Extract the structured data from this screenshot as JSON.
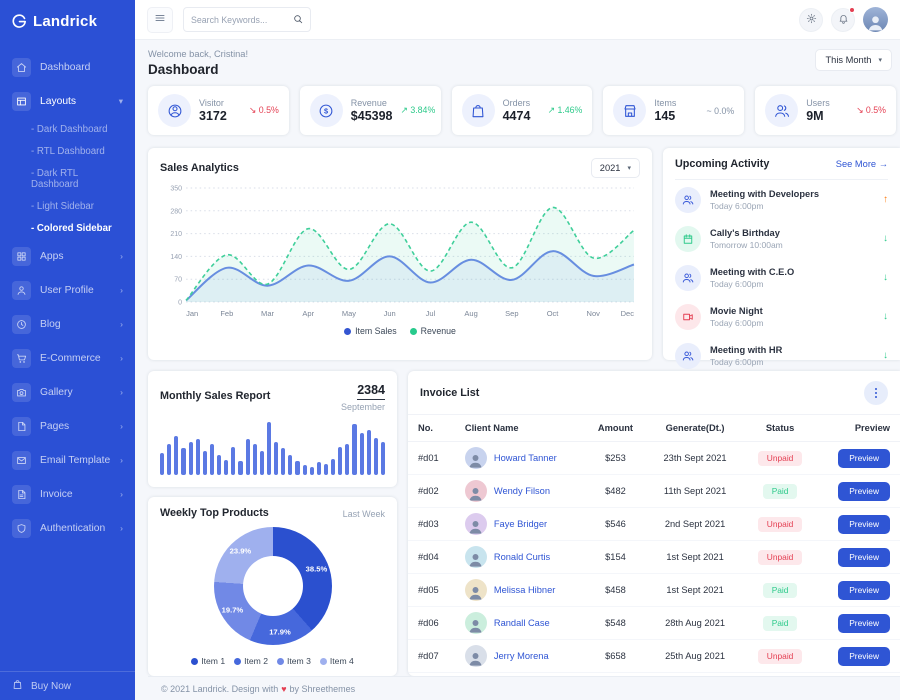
{
  "app": {
    "logo_text": "Landrick",
    "accent": "#2f55d4",
    "danger": "#e43f52",
    "success": "#2eca8b",
    "warning": "#fd7e14"
  },
  "sidebar": {
    "items": [
      {
        "label": "Dashboard",
        "icon": "home-icon",
        "arrow": ""
      },
      {
        "label": "Layouts",
        "icon": "layout-icon",
        "arrow": "down",
        "expanded": true,
        "children": [
          "Dark Dashboard",
          "RTL Dashboard",
          "Dark RTL Dashboard",
          "Light Sidebar",
          "Colored Sidebar"
        ],
        "active_child": "Colored Sidebar"
      },
      {
        "label": "Apps",
        "icon": "grid-icon",
        "arrow": "right"
      },
      {
        "label": "User Profile",
        "icon": "user-icon",
        "arrow": "right"
      },
      {
        "label": "Blog",
        "icon": "clock-icon",
        "arrow": "right"
      },
      {
        "label": "E-Commerce",
        "icon": "cart-icon",
        "arrow": "right"
      },
      {
        "label": "Gallery",
        "icon": "camera-icon",
        "arrow": "right"
      },
      {
        "label": "Pages",
        "icon": "file-icon",
        "arrow": "right"
      },
      {
        "label": "Email Template",
        "icon": "mail-icon",
        "arrow": "right"
      },
      {
        "label": "Invoice",
        "icon": "file-text-icon",
        "arrow": "right"
      },
      {
        "label": "Authentication",
        "icon": "shield-icon",
        "arrow": "right"
      }
    ],
    "buy_now_label": "Buy Now",
    "buy_now_icon": "bag-icon"
  },
  "topbar": {
    "search_placeholder": "Search Keywords...",
    "icons": [
      "menu-icon",
      "search-icon",
      "gear-icon",
      "bell-icon"
    ],
    "bell_has_badge": true
  },
  "page": {
    "welcome": "Welcome back, Cristina!",
    "title": "Dashboard",
    "period": "This Month"
  },
  "stats": [
    {
      "label": "Visitor",
      "value": "3172",
      "delta": "0.5%",
      "trend": "down",
      "icon": "person-circle-icon"
    },
    {
      "label": "Revenue",
      "value": "$45398",
      "delta": "3.84%",
      "trend": "up",
      "icon": "dollar-circle-icon"
    },
    {
      "label": "Orders",
      "value": "4474",
      "delta": "1.46%",
      "trend": "up",
      "icon": "shopping-bag-icon"
    },
    {
      "label": "Items",
      "value": "145",
      "delta": "0.0%",
      "trend": "flat",
      "icon": "storefront-icon"
    },
    {
      "label": "Users",
      "value": "9M",
      "delta": "0.5%",
      "trend": "down",
      "icon": "users-icon"
    }
  ],
  "chart_data": [
    {
      "type": "line",
      "title": "Sales Analytics",
      "year_selector": "2021",
      "x": [
        "Jan",
        "Feb",
        "Mar",
        "Apr",
        "May",
        "Jun",
        "Jul",
        "Aug",
        "Sep",
        "Oct",
        "Nov",
        "Dec"
      ],
      "series": [
        {
          "name": "Item Sales",
          "color": "#6d87e8",
          "style": "solid",
          "values": [
            5,
            105,
            50,
            112,
            65,
            140,
            60,
            130,
            68,
            156,
            80,
            115
          ]
        },
        {
          "name": "Revenue",
          "color": "#3fcf9a",
          "style": "dashed",
          "values": [
            5,
            145,
            55,
            225,
            100,
            240,
            95,
            245,
            105,
            290,
            135,
            220
          ]
        }
      ],
      "ylim": [
        0,
        350
      ],
      "yticks": [
        0,
        70,
        140,
        210,
        280,
        350
      ],
      "grid": "dotted",
      "legend_position": "bottom"
    },
    {
      "type": "bar",
      "title": "Monthly Sales Report",
      "highlight_value": "2384",
      "highlight_label": "September",
      "color": "#5b79e3",
      "values": [
        40,
        58,
        72,
        50,
        62,
        68,
        45,
        58,
        38,
        28,
        52,
        25,
        68,
        58,
        45,
        100,
        62,
        50,
        38,
        26,
        18,
        14,
        24,
        20,
        30,
        52,
        58,
        95,
        78,
        85,
        70,
        62
      ]
    },
    {
      "type": "pie",
      "title": "Weekly Top Products",
      "subtitle": "Last Week",
      "labels": [
        "Item 1",
        "Item 2",
        "Item 3",
        "Item 4"
      ],
      "values": [
        38.5,
        17.9,
        19.7,
        23.9
      ],
      "value_labels": [
        "38.5%",
        "17.9%",
        "19.7%",
        "23.9%"
      ],
      "colors": [
        "#2b50cf",
        "#4668dc",
        "#7189e6",
        "#9fb0ee"
      ],
      "donut": true,
      "legend_position": "bottom"
    }
  ],
  "activity": {
    "title": "Upcoming Activity",
    "see_more": "See More",
    "see_more_arrow": "→",
    "items": [
      {
        "title": "Meeting with Developers",
        "time": "Today 6:00pm",
        "icon": "users-icon",
        "icon_color": "blue",
        "direction": "up"
      },
      {
        "title": "Cally's Birthday",
        "time": "Tomorrow 10:00am",
        "icon": "calendar-icon",
        "icon_color": "green",
        "direction": "down"
      },
      {
        "title": "Meeting with C.E.O",
        "time": "Today 6:00pm",
        "icon": "users-icon",
        "icon_color": "blue",
        "direction": "down"
      },
      {
        "title": "Movie Night",
        "time": "Today 6:00pm",
        "icon": "video-icon",
        "icon_color": "red",
        "direction": "down"
      },
      {
        "title": "Meeting with HR",
        "time": "Today 6:00pm",
        "icon": "users-icon",
        "icon_color": "blue",
        "direction": "down"
      }
    ]
  },
  "invoice": {
    "title": "Invoice List",
    "menu_icon": "kebab-icon",
    "columns": [
      "No.",
      "Client Name",
      "Amount",
      "Generate(Dt.)",
      "Status",
      "Preview"
    ],
    "preview_label": "Preview",
    "rows": [
      {
        "no": "#d01",
        "client": "Howard Tanner",
        "amount": "$253",
        "date": "23th Sept 2021",
        "status": "Unpaid"
      },
      {
        "no": "#d02",
        "client": "Wendy Filson",
        "amount": "$482",
        "date": "11th Sept 2021",
        "status": "Paid"
      },
      {
        "no": "#d03",
        "client": "Faye Bridger",
        "amount": "$546",
        "date": "2nd Sept 2021",
        "status": "Unpaid"
      },
      {
        "no": "#d04",
        "client": "Ronald Curtis",
        "amount": "$154",
        "date": "1st Sept 2021",
        "status": "Unpaid"
      },
      {
        "no": "#d05",
        "client": "Melissa Hibner",
        "amount": "$458",
        "date": "1st Sept 2021",
        "status": "Paid"
      },
      {
        "no": "#d06",
        "client": "Randall Case",
        "amount": "$548",
        "date": "28th Aug 2021",
        "status": "Paid"
      },
      {
        "no": "#d07",
        "client": "Jerry Morena",
        "amount": "$658",
        "date": "25th Aug 2021",
        "status": "Unpaid"
      }
    ]
  },
  "footer": {
    "text_before": "© 2021 Landrick. Design with",
    "heart": "♥",
    "text_after": "by Shreethemes"
  }
}
